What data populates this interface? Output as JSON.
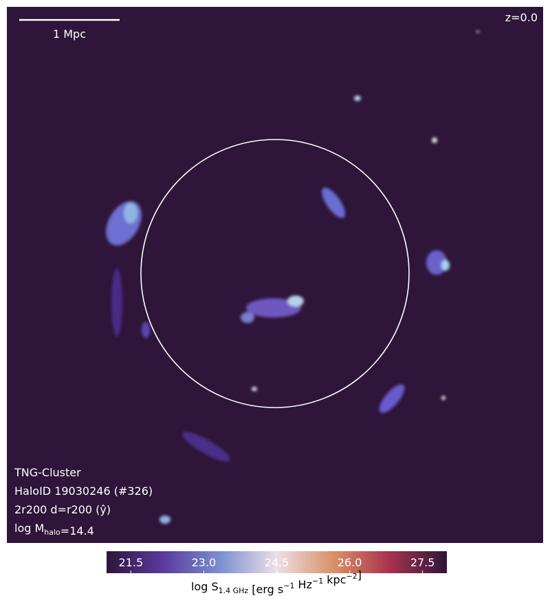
{
  "map": {
    "scale_bar": "1 Mpc",
    "redshift": "z=0.0",
    "info": [
      [
        {
          "text": "TNG-Cluster"
        }
      ],
      [
        {
          "text": "HaloID 19030246 (#326)"
        }
      ],
      [
        {
          "text": "2r200 d=r200 (ŷ)"
        }
      ],
      [
        {
          "text": "log M"
        },
        {
          "sub": "halo"
        },
        {
          "text": "=14.4"
        }
      ]
    ]
  },
  "colorbar": {
    "lim": [
      21.0,
      28.0
    ],
    "ticks": [
      21.5,
      {
        "value": 23,
        "label": "23.0"
      },
      24.5,
      {
        "value": 26,
        "label": "26.0"
      },
      27.5
    ],
    "colors": [
      "#2e1539",
      "#5a3a9e",
      "#7b8fd0",
      "#ecdfe6",
      "#d99167",
      "#a6324e",
      "#2e1539"
    ],
    "label": [
      {
        "text": "log S"
      },
      {
        "sub": "1.4 GHz"
      },
      {
        "text": " [erg s"
      },
      {
        "sup": "−1"
      },
      {
        "text": " Hz"
      },
      {
        "sup": "−1"
      },
      {
        "text": " kpc"
      },
      {
        "sup": "−2"
      },
      {
        "text": "]"
      }
    ]
  }
}
